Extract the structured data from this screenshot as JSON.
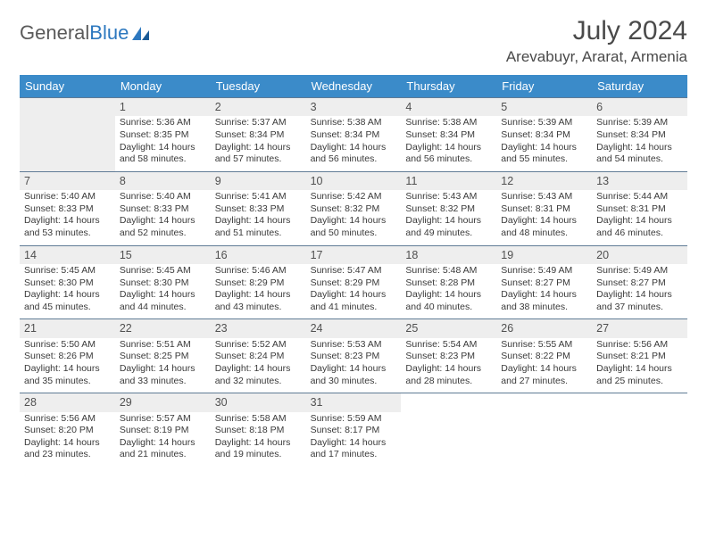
{
  "logo": {
    "text1": "General",
    "text2": "Blue"
  },
  "header": {
    "month_title": "July 2024",
    "location": "Arevabuyr, Ararat, Armenia"
  },
  "colors": {
    "header_bg": "#3b8bc9",
    "header_text": "#ffffff",
    "cell_border": "#5f7b95",
    "shaded_bg": "#eeeeee",
    "text": "#3a3a3a",
    "title_text": "#4a4a4a",
    "logo_gray": "#5a5a5a",
    "logo_blue": "#2d78bf"
  },
  "dow": [
    "Sunday",
    "Monday",
    "Tuesday",
    "Wednesday",
    "Thursday",
    "Friday",
    "Saturday"
  ],
  "weeks": [
    [
      {
        "shaded": true
      },
      {
        "day": "1",
        "sunrise": "Sunrise: 5:36 AM",
        "sunset": "Sunset: 8:35 PM",
        "daylight": "Daylight: 14 hours and 58 minutes."
      },
      {
        "day": "2",
        "sunrise": "Sunrise: 5:37 AM",
        "sunset": "Sunset: 8:34 PM",
        "daylight": "Daylight: 14 hours and 57 minutes."
      },
      {
        "day": "3",
        "sunrise": "Sunrise: 5:38 AM",
        "sunset": "Sunset: 8:34 PM",
        "daylight": "Daylight: 14 hours and 56 minutes."
      },
      {
        "day": "4",
        "sunrise": "Sunrise: 5:38 AM",
        "sunset": "Sunset: 8:34 PM",
        "daylight": "Daylight: 14 hours and 56 minutes."
      },
      {
        "day": "5",
        "sunrise": "Sunrise: 5:39 AM",
        "sunset": "Sunset: 8:34 PM",
        "daylight": "Daylight: 14 hours and 55 minutes."
      },
      {
        "day": "6",
        "sunrise": "Sunrise: 5:39 AM",
        "sunset": "Sunset: 8:34 PM",
        "daylight": "Daylight: 14 hours and 54 minutes."
      }
    ],
    [
      {
        "day": "7",
        "sunrise": "Sunrise: 5:40 AM",
        "sunset": "Sunset: 8:33 PM",
        "daylight": "Daylight: 14 hours and 53 minutes."
      },
      {
        "day": "8",
        "sunrise": "Sunrise: 5:40 AM",
        "sunset": "Sunset: 8:33 PM",
        "daylight": "Daylight: 14 hours and 52 minutes."
      },
      {
        "day": "9",
        "sunrise": "Sunrise: 5:41 AM",
        "sunset": "Sunset: 8:33 PM",
        "daylight": "Daylight: 14 hours and 51 minutes."
      },
      {
        "day": "10",
        "sunrise": "Sunrise: 5:42 AM",
        "sunset": "Sunset: 8:32 PM",
        "daylight": "Daylight: 14 hours and 50 minutes."
      },
      {
        "day": "11",
        "sunrise": "Sunrise: 5:43 AM",
        "sunset": "Sunset: 8:32 PM",
        "daylight": "Daylight: 14 hours and 49 minutes."
      },
      {
        "day": "12",
        "sunrise": "Sunrise: 5:43 AM",
        "sunset": "Sunset: 8:31 PM",
        "daylight": "Daylight: 14 hours and 48 minutes."
      },
      {
        "day": "13",
        "sunrise": "Sunrise: 5:44 AM",
        "sunset": "Sunset: 8:31 PM",
        "daylight": "Daylight: 14 hours and 46 minutes."
      }
    ],
    [
      {
        "day": "14",
        "sunrise": "Sunrise: 5:45 AM",
        "sunset": "Sunset: 8:30 PM",
        "daylight": "Daylight: 14 hours and 45 minutes."
      },
      {
        "day": "15",
        "sunrise": "Sunrise: 5:45 AM",
        "sunset": "Sunset: 8:30 PM",
        "daylight": "Daylight: 14 hours and 44 minutes."
      },
      {
        "day": "16",
        "sunrise": "Sunrise: 5:46 AM",
        "sunset": "Sunset: 8:29 PM",
        "daylight": "Daylight: 14 hours and 43 minutes."
      },
      {
        "day": "17",
        "sunrise": "Sunrise: 5:47 AM",
        "sunset": "Sunset: 8:29 PM",
        "daylight": "Daylight: 14 hours and 41 minutes."
      },
      {
        "day": "18",
        "sunrise": "Sunrise: 5:48 AM",
        "sunset": "Sunset: 8:28 PM",
        "daylight": "Daylight: 14 hours and 40 minutes."
      },
      {
        "day": "19",
        "sunrise": "Sunrise: 5:49 AM",
        "sunset": "Sunset: 8:27 PM",
        "daylight": "Daylight: 14 hours and 38 minutes."
      },
      {
        "day": "20",
        "sunrise": "Sunrise: 5:49 AM",
        "sunset": "Sunset: 8:27 PM",
        "daylight": "Daylight: 14 hours and 37 minutes."
      }
    ],
    [
      {
        "day": "21",
        "sunrise": "Sunrise: 5:50 AM",
        "sunset": "Sunset: 8:26 PM",
        "daylight": "Daylight: 14 hours and 35 minutes."
      },
      {
        "day": "22",
        "sunrise": "Sunrise: 5:51 AM",
        "sunset": "Sunset: 8:25 PM",
        "daylight": "Daylight: 14 hours and 33 minutes."
      },
      {
        "day": "23",
        "sunrise": "Sunrise: 5:52 AM",
        "sunset": "Sunset: 8:24 PM",
        "daylight": "Daylight: 14 hours and 32 minutes."
      },
      {
        "day": "24",
        "sunrise": "Sunrise: 5:53 AM",
        "sunset": "Sunset: 8:23 PM",
        "daylight": "Daylight: 14 hours and 30 minutes."
      },
      {
        "day": "25",
        "sunrise": "Sunrise: 5:54 AM",
        "sunset": "Sunset: 8:23 PM",
        "daylight": "Daylight: 14 hours and 28 minutes."
      },
      {
        "day": "26",
        "sunrise": "Sunrise: 5:55 AM",
        "sunset": "Sunset: 8:22 PM",
        "daylight": "Daylight: 14 hours and 27 minutes."
      },
      {
        "day": "27",
        "sunrise": "Sunrise: 5:56 AM",
        "sunset": "Sunset: 8:21 PM",
        "daylight": "Daylight: 14 hours and 25 minutes."
      }
    ],
    [
      {
        "day": "28",
        "sunrise": "Sunrise: 5:56 AM",
        "sunset": "Sunset: 8:20 PM",
        "daylight": "Daylight: 14 hours and 23 minutes."
      },
      {
        "day": "29",
        "sunrise": "Sunrise: 5:57 AM",
        "sunset": "Sunset: 8:19 PM",
        "daylight": "Daylight: 14 hours and 21 minutes."
      },
      {
        "day": "30",
        "sunrise": "Sunrise: 5:58 AM",
        "sunset": "Sunset: 8:18 PM",
        "daylight": "Daylight: 14 hours and 19 minutes."
      },
      {
        "day": "31",
        "sunrise": "Sunrise: 5:59 AM",
        "sunset": "Sunset: 8:17 PM",
        "daylight": "Daylight: 14 hours and 17 minutes."
      },
      {
        "shaded": false
      },
      {
        "shaded": false
      },
      {
        "shaded": false
      }
    ]
  ]
}
